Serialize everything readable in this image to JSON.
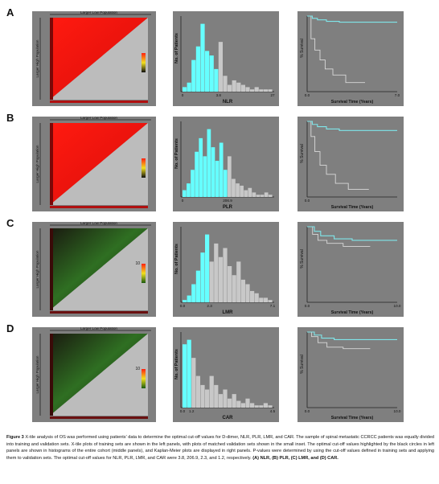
{
  "figure": {
    "rows": [
      {
        "id": "A",
        "letter": "A",
        "theme": "red",
        "xtile_top_label": "Larger Low Population",
        "xtile_left_label": "Larger High Population",
        "xtile_scale_top": "",
        "hist_ylabel": "No. of Patients",
        "hist_xlabel": "NLR",
        "hist_xticks": [
          "0",
          "3.8",
          "27"
        ],
        "km_ylabel": "% Survival",
        "km_xlabel": "Survival Time (Years)",
        "km_xticks": [
          "0.0",
          "",
          "7.0"
        ],
        "hist": {
          "bars": [
            2,
            4,
            14,
            20,
            30,
            18,
            16,
            10,
            22,
            7,
            3,
            5,
            4,
            3,
            2,
            1,
            2,
            1,
            1,
            1
          ],
          "cut_index": 8,
          "max": 32
        },
        "km": {
          "upper": [
            [
              0,
              100
            ],
            [
              0.4,
              97
            ],
            [
              0.8,
              95
            ],
            [
              1.5,
              93
            ],
            [
              2.5,
              92
            ],
            [
              7,
              92
            ]
          ],
          "lower": [
            [
              0,
              100
            ],
            [
              0.3,
              70
            ],
            [
              0.6,
              55
            ],
            [
              1.0,
              42
            ],
            [
              1.4,
              30
            ],
            [
              2.0,
              22
            ],
            [
              3.0,
              12
            ],
            [
              4.5,
              12
            ]
          ]
        }
      },
      {
        "id": "B",
        "letter": "B",
        "theme": "red",
        "xtile_top_label": "Larger Low Population",
        "xtile_left_label": "Larger High Population",
        "xtile_scale_top": "",
        "hist_ylabel": "No. of Patients",
        "hist_xlabel": "PLR",
        "hist_xticks": [
          "0",
          "206.9",
          ""
        ],
        "km_ylabel": "% Survival",
        "km_xlabel": "Survival Time (Years)",
        "km_xticks": [
          "0.0",
          "",
          ""
        ],
        "hist": {
          "bars": [
            3,
            6,
            12,
            20,
            26,
            18,
            30,
            22,
            16,
            24,
            12,
            18,
            8,
            6,
            5,
            3,
            4,
            2,
            1,
            1,
            2,
            1
          ],
          "cut_index": 11,
          "max": 32
        },
        "km": {
          "upper": [
            [
              0,
              100
            ],
            [
              0.4,
              96
            ],
            [
              0.8,
              93
            ],
            [
              1.5,
              90
            ],
            [
              2.5,
              88
            ],
            [
              7,
              88
            ]
          ],
          "lower": [
            [
              0,
              100
            ],
            [
              0.3,
              80
            ],
            [
              0.6,
              60
            ],
            [
              1.0,
              42
            ],
            [
              1.5,
              30
            ],
            [
              2.2,
              18
            ],
            [
              3.2,
              10
            ],
            [
              4.8,
              10
            ]
          ]
        }
      },
      {
        "id": "C",
        "letter": "C",
        "theme": "green",
        "xtile_top_label": "Larger Low Population",
        "xtile_left_label": "Larger High Population",
        "xtile_scale_top": "10",
        "hist_ylabel": "No. of Patients",
        "hist_xlabel": "LMR",
        "hist_xticks": [
          "0.0",
          "2.3",
          "7.1"
        ],
        "km_ylabel": "% Survival",
        "km_xlabel": "Survival Time (Years)",
        "km_xticks": [
          "0.0",
          "",
          "10.0"
        ],
        "hist": {
          "bars": [
            1,
            3,
            8,
            14,
            22,
            30,
            18,
            26,
            20,
            24,
            16,
            12,
            18,
            10,
            8,
            5,
            4,
            2,
            2,
            1
          ],
          "cut_index": 6,
          "max": 32
        },
        "km": {
          "upper": [
            [
              0,
              100
            ],
            [
              0.8,
              94
            ],
            [
              1.5,
              88
            ],
            [
              3,
              84
            ],
            [
              5,
              82
            ],
            [
              10,
              82
            ]
          ],
          "lower": [
            [
              0,
              100
            ],
            [
              0.6,
              90
            ],
            [
              1.2,
              82
            ],
            [
              2.2,
              78
            ],
            [
              4,
              74
            ],
            [
              7,
              74
            ]
          ]
        }
      },
      {
        "id": "D",
        "letter": "D",
        "theme": "green",
        "xtile_top_label": "Larger Low Population",
        "xtile_left_label": "Larger High Population",
        "xtile_scale_top": "10",
        "hist_ylabel": "No. of Patients",
        "hist_xlabel": "CAR",
        "hist_xticks": [
          "0.0",
          "1.2",
          "4.5"
        ],
        "km_ylabel": "% Survival",
        "km_xlabel": "Survival Time (Years)",
        "km_xticks": [
          "0.0",
          "",
          "10.0"
        ],
        "hist": {
          "bars": [
            28,
            30,
            22,
            14,
            10,
            8,
            14,
            10,
            6,
            8,
            4,
            6,
            3,
            2,
            4,
            2,
            1,
            1,
            2,
            1
          ],
          "cut_index": 2,
          "max": 32
        },
        "km": {
          "upper": [
            [
              0,
              100
            ],
            [
              0.8,
              96
            ],
            [
              1.6,
              92
            ],
            [
              3,
              90
            ],
            [
              6,
              90
            ],
            [
              10,
              90
            ]
          ],
          "lower": [
            [
              0,
              100
            ],
            [
              0.5,
              94
            ],
            [
              1.2,
              86
            ],
            [
              2.2,
              80
            ],
            [
              4,
              78
            ],
            [
              7,
              78
            ]
          ]
        }
      }
    ]
  },
  "caption": {
    "label": "Figure 3",
    "body": " X-tile analysis of OS was performed using patients' data to determine the optimal cut-off values for D-dimer, NLR, PLR, LMR, and CAR. The sample of spinal metastatic CCRCC patients was equally divided into training and validation sets. X-tile plots of training sets are shown in the left panels, with plots of matched validation sets shown in the small inset. The optimal cut-off values highlighted by the black circles in left panels are shown in histograms of the entire cohort (middle panels), and Kaplan-Meier plots are displayed in right panels. P-values were determined by using the cut-off values defined in training sets and applying them to validation sets. The optimal cut-off values for NLR, PLR, LMR, and CAR were 3.8, 206.9, 2.3, and 1.2, respectively. ",
    "panels": "(A) NLR, (B) PLR, (C) LMR, and (D) CAR."
  },
  "colors": {
    "panel_bg": "#7f7f7f",
    "red": "#e8120c",
    "green": "#2f6f22",
    "hist_low": "#66ffff",
    "hist_high": "#c8c8c8",
    "km_upper": "#7fe6ea",
    "km_lower": "#d9d9d9",
    "gray_triangle": "#bcbcbc"
  }
}
